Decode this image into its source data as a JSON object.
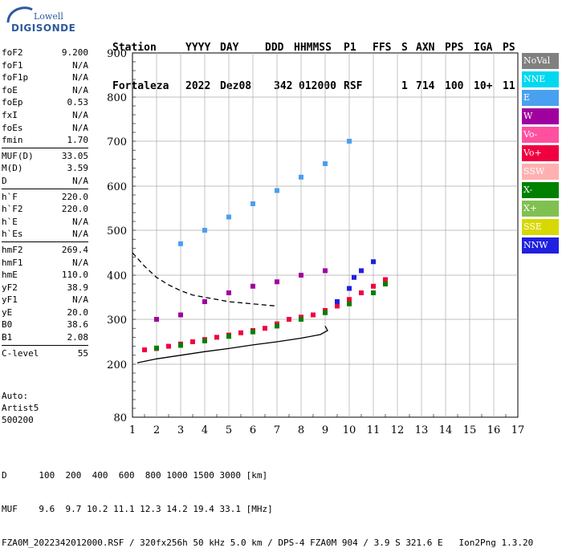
{
  "logo": {
    "line1": "Lowell",
    "line2": "DIGISONDE"
  },
  "header": {
    "labels": [
      "Station",
      "YYYY",
      "DAY",
      "DDD",
      "HHMMSS",
      "P1",
      "FFS",
      "S",
      "AXN",
      "PPS",
      "IGA",
      "PS"
    ],
    "values": [
      "Fortaleza",
      "2022",
      "Dez08",
      "342",
      "012000",
      "RSF",
      "1",
      "714",
      "100",
      "10+",
      "11"
    ]
  },
  "params": [
    {
      "label": "foF2",
      "value": "9.200"
    },
    {
      "label": "foF1",
      "value": "N/A"
    },
    {
      "label": "foF1p",
      "value": "N/A"
    },
    {
      "label": "foE",
      "value": "N/A"
    },
    {
      "label": "foEp",
      "value": "0.53"
    },
    {
      "label": "fxI",
      "value": "N/A"
    },
    {
      "label": "foEs",
      "value": "N/A"
    },
    {
      "label": "fmin",
      "value": "1.70"
    },
    {
      "label": "MUF(D)",
      "value": "33.05"
    },
    {
      "label": "M(D)",
      "value": "3.59"
    },
    {
      "label": "D",
      "value": "N/A"
    },
    {
      "label": "h`F",
      "value": "220.0"
    },
    {
      "label": "h`F2",
      "value": "220.0"
    },
    {
      "label": "h`E",
      "value": "N/A"
    },
    {
      "label": "h`Es",
      "value": "N/A"
    },
    {
      "label": "hmF2",
      "value": "269.4"
    },
    {
      "label": "hmF1",
      "value": "N/A"
    },
    {
      "label": "hmE",
      "value": "110.0"
    },
    {
      "label": "yF2",
      "value": "38.9"
    },
    {
      "label": "yF1",
      "value": "N/A"
    },
    {
      "label": "yE",
      "value": "20.0"
    },
    {
      "label": "B0",
      "value": "38.6"
    },
    {
      "label": "B1",
      "value": "2.08"
    },
    {
      "label": "C-level",
      "value": "55"
    }
  ],
  "auto": {
    "line1": "Auto:",
    "line2": "Artist5",
    "line3": "500200"
  },
  "legend": [
    {
      "label": "NoVal",
      "color": "#808080"
    },
    {
      "label": "NNE",
      "color": "#00d8f0"
    },
    {
      "label": "E",
      "color": "#4aa0f0"
    },
    {
      "label": "W",
      "color": "#a000a0"
    },
    {
      "label": "Vo-",
      "color": "#ff50a0"
    },
    {
      "label": "Vo+",
      "color": "#f00040"
    },
    {
      "label": "SSW",
      "color": "#ffb0b0"
    },
    {
      "label": "X-",
      "color": "#008000"
    },
    {
      "label": "X+",
      "color": "#80c050"
    },
    {
      "label": "SSE",
      "color": "#d8d800"
    },
    {
      "label": "NNW",
      "color": "#2020e0"
    }
  ],
  "footer": {
    "line1": "D      100  200  400  600  800 1000 1500 3000 [km]",
    "line2": "MUF    9.6  9.7 10.2 11.1 12.3 14.2 19.4 33.1 [MHz]",
    "line3": "FZA0M_2022342012000.RSF / 320fx256h 50 kHz 5.0 km / DPS-4 FZA0M 904 / 3.9 S 321.6 E   Ion2Png 1.3.20"
  },
  "chart_data": {
    "type": "scatter",
    "title": "",
    "xlabel": "",
    "ylabel": "",
    "xlim": [
      1,
      17
    ],
    "ylim": [
      80,
      900
    ],
    "xticks": [
      1,
      2,
      3,
      4,
      5,
      6,
      7,
      8,
      9,
      10,
      11,
      12,
      13,
      14,
      15,
      16,
      17
    ],
    "yticks": [
      80,
      200,
      300,
      400,
      500,
      600,
      700,
      800,
      900
    ],
    "grid": true,
    "series": [
      {
        "name": "Vo+",
        "color": "#f00040",
        "x": [
          1.5,
          2.0,
          2.5,
          3.0,
          3.5,
          4.0,
          4.5,
          5.0,
          5.5,
          6.0,
          6.5,
          7.0,
          7.5,
          8.0,
          8.5,
          9.0,
          9.5,
          10.0,
          10.5,
          11.0,
          11.5
        ],
        "y": [
          232,
          235,
          240,
          245,
          250,
          255,
          260,
          265,
          270,
          275,
          280,
          290,
          300,
          305,
          310,
          320,
          330,
          345,
          360,
          375,
          390
        ]
      },
      {
        "name": "X-",
        "color": "#008000",
        "x": [
          2.0,
          3.0,
          4.0,
          5.0,
          6.0,
          7.0,
          8.0,
          9.0,
          10.0,
          11.0,
          11.5
        ],
        "y": [
          236,
          242,
          252,
          262,
          272,
          285,
          300,
          315,
          335,
          360,
          380
        ]
      },
      {
        "name": "NNW",
        "color": "#2020e0",
        "x": [
          9.5,
          10.0,
          10.2,
          10.5,
          11.0
        ],
        "y": [
          340,
          370,
          395,
          410,
          430
        ]
      },
      {
        "name": "W",
        "color": "#a000a0",
        "x": [
          2.0,
          3.0,
          4.0,
          5.0,
          6.0,
          7.0,
          8.0,
          9.0
        ],
        "y": [
          300,
          310,
          340,
          360,
          375,
          385,
          400,
          410
        ]
      },
      {
        "name": "E",
        "color": "#4aa0f0",
        "x": [
          3.0,
          4.0,
          5.0,
          6.0,
          7.0,
          8.0,
          9.0,
          10.0
        ],
        "y": [
          470,
          500,
          530,
          560,
          590,
          620,
          650,
          700
        ]
      }
    ],
    "curves": [
      {
        "name": "profile-solid",
        "x": [
          1.2,
          2.0,
          3.0,
          4.0,
          5.0,
          6.0,
          7.0,
          8.0,
          8.8,
          9.1,
          9.0
        ],
        "y": [
          203,
          212,
          220,
          228,
          235,
          243,
          250,
          258,
          266,
          275,
          285
        ]
      },
      {
        "name": "profile-dashed",
        "x": [
          1.0,
          1.5,
          2.0,
          2.5,
          3.0,
          3.5,
          4.0,
          5.0,
          6.0,
          7.0
        ],
        "y": [
          450,
          420,
          395,
          378,
          365,
          355,
          350,
          340,
          335,
          330
        ]
      }
    ]
  }
}
